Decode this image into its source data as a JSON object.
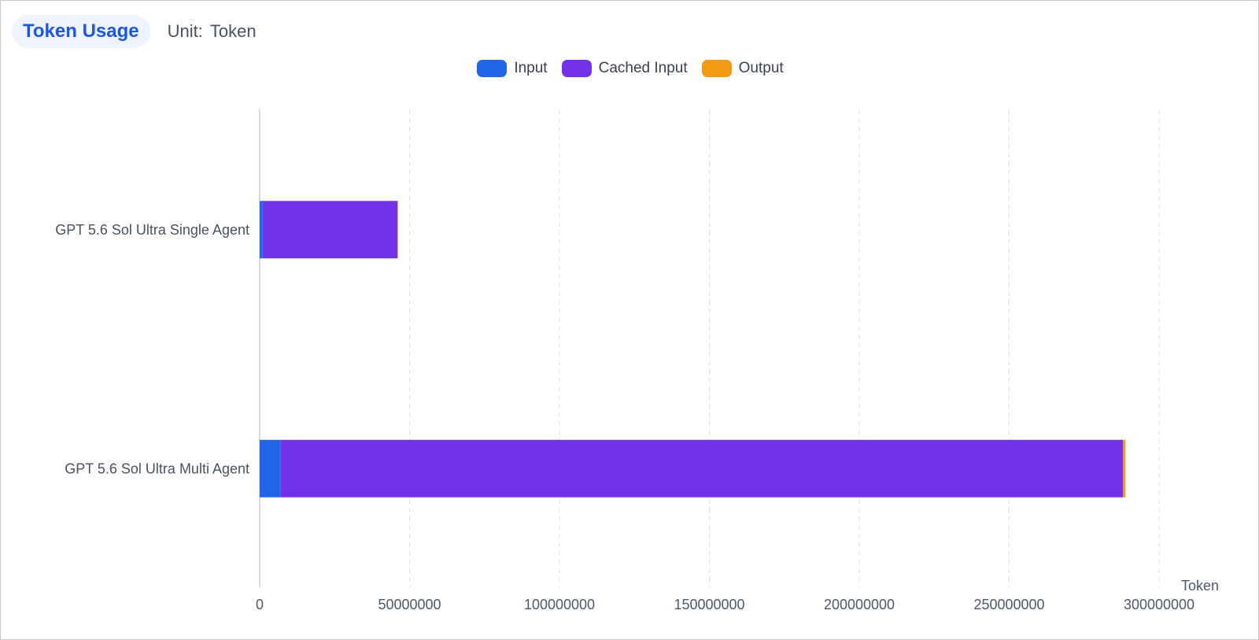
{
  "header": {
    "title": "Token Usage",
    "unit_label": "Unit:",
    "unit_value": "Token"
  },
  "colors": {
    "input": "#2166e8",
    "cached_input": "#7432e8",
    "output": "#f39a15",
    "axis": "#b8c2d4",
    "grid": "#dde1e8"
  },
  "chart_data": {
    "type": "bar",
    "orientation": "horizontal",
    "stacked": true,
    "categories": [
      "GPT 5.6 Sol Ultra Single Agent",
      "GPT 5.6 Sol Ultra Multi Agent"
    ],
    "series": [
      {
        "name": "Input",
        "color": "#2166e8",
        "values": [
          1000000,
          7000000
        ]
      },
      {
        "name": "Cached Input",
        "color": "#7432e8",
        "values": [
          45000000,
          281000000
        ]
      },
      {
        "name": "Output",
        "color": "#f39a15",
        "values": [
          150000,
          800000
        ]
      }
    ],
    "xlabel": "Token",
    "xlim": [
      0,
      300000000
    ],
    "xticks": [
      "0",
      "50000000",
      "100000000",
      "150000000",
      "200000000",
      "250000000",
      "300000000"
    ],
    "grid": "vertical dashed",
    "legend_position": "top-center"
  }
}
